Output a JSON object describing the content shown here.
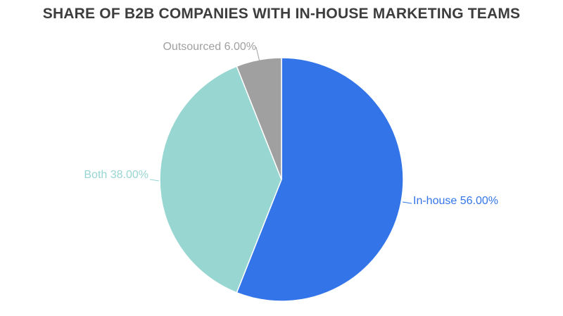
{
  "chart_data": {
    "type": "pie",
    "title": "SHARE OF B2B COMPANIES WITH IN-HOUSE MARKETING TEAMS",
    "slices": [
      {
        "name": "In-house",
        "value": 56.0,
        "label": "In-house 56.00%",
        "color": "#3375e8"
      },
      {
        "name": "Both",
        "value": 38.0,
        "label": "Both 38.00%",
        "color": "#98d6d2"
      },
      {
        "name": "Outsourced",
        "value": 6.0,
        "label": "Outsourced 6.00%",
        "color": "#a0a0a0"
      }
    ],
    "label_colors": {
      "In-house": "#3375e8",
      "Both": "#98d6d2",
      "Outsourced": "#a0a0a0"
    },
    "legend": "none"
  }
}
